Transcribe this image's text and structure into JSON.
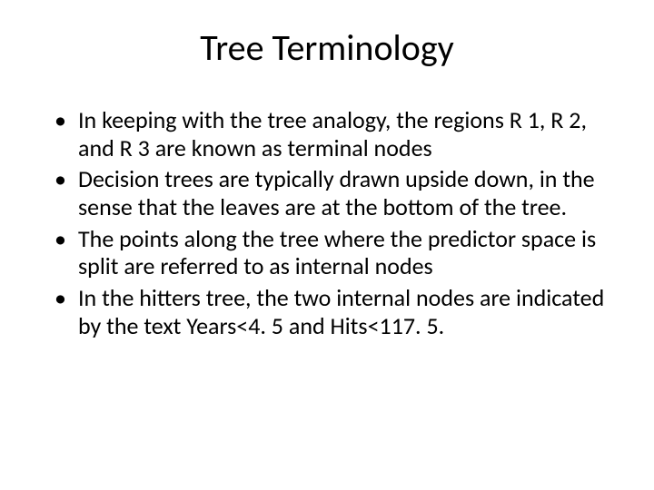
{
  "slide": {
    "title": "Tree Terminology",
    "title_fontsize": 40,
    "body_fontsize": 26,
    "background_color": "#ffffff",
    "text_color": "#000000",
    "bullets": [
      "In keeping with the tree analogy, the regions R 1, R 2, and R 3 are known as terminal nodes",
      "Decision trees are typically drawn upside down, in the sense that the leaves are at the bottom of the tree.",
      "The points along the tree where the predictor space is split are referred to as internal nodes",
      "In the hitters tree, the two internal nodes are indicated by the text Years<4. 5 and Hits<117. 5."
    ]
  }
}
